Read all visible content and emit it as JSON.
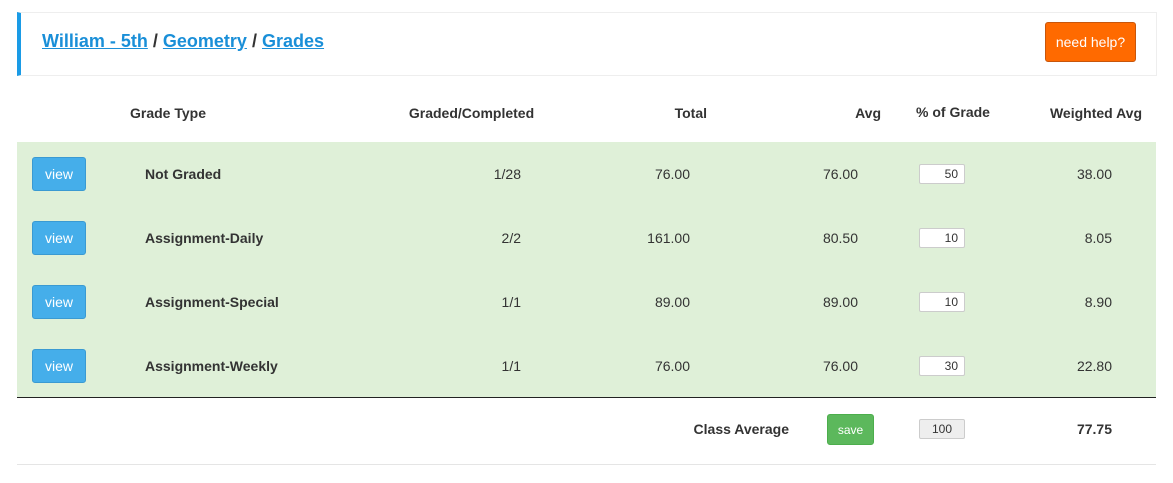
{
  "header": {
    "breadcrumb": [
      "William - 5th",
      "Geometry",
      "Grades"
    ],
    "separator": "/",
    "help_button": "need help?"
  },
  "table": {
    "columns": [
      "Grade Type",
      "Graded/Completed",
      "Total",
      "Avg",
      "% of Grade",
      "Weighted Avg"
    ],
    "rows": [
      {
        "button": "view",
        "grade_type": "Not Graded",
        "graded_completed": "1/28",
        "total": "76.00",
        "avg": "76.00",
        "percent": "50",
        "weighted_avg": "38.00"
      },
      {
        "button": "view",
        "grade_type": "Assignment-Daily",
        "graded_completed": "2/2",
        "total": "161.00",
        "avg": "80.50",
        "percent": "10",
        "weighted_avg": "8.05"
      },
      {
        "button": "view",
        "grade_type": "Assignment-Special",
        "graded_completed": "1/1",
        "total": "89.00",
        "avg": "89.00",
        "percent": "10",
        "weighted_avg": "8.90"
      },
      {
        "button": "view",
        "grade_type": "Assignment-Weekly",
        "graded_completed": "1/1",
        "total": "76.00",
        "avg": "76.00",
        "percent": "30",
        "weighted_avg": "22.80"
      }
    ],
    "footer": {
      "label": "Class Average",
      "save_button": "save",
      "percent_total": "100",
      "class_average": "77.75"
    }
  }
}
